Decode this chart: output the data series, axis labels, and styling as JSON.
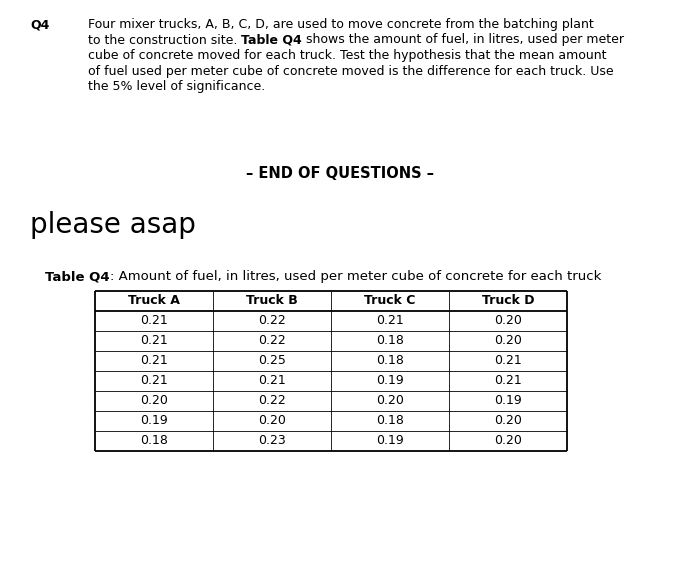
{
  "q4_label": "Q4",
  "q4_lines": [
    [
      "Four mixer trucks, A, B, C, D, are used to move concrete from the batching plant",
      "normal"
    ],
    [
      "to the construction site. ",
      "normal"
    ],
    [
      "Table Q4",
      "bold"
    ],
    [
      " shows the amount of fuel, in litres, used per meter",
      "normal"
    ],
    [
      "cube of concrete moved for each truck. Test the hypothesis that the mean amount",
      "normal"
    ],
    [
      "of fuel used per meter cube of concrete moved is the difference for each truck. Use",
      "normal"
    ],
    [
      "the 5% level of significance.",
      "normal"
    ]
  ],
  "end_of_questions": "– END OF QUESTIONS –",
  "please_asap": "please asap",
  "table_caption_bold": "Table Q4",
  "table_caption_rest": ": Amount of fuel, in litres, used per meter cube of concrete for each truck",
  "col_headers": [
    "Truck A",
    "Truck B",
    "Truck C",
    "Truck D"
  ],
  "table_data": [
    [
      "0.21",
      "0.22",
      "0.21",
      "0.20"
    ],
    [
      "0.21",
      "0.22",
      "0.18",
      "0.20"
    ],
    [
      "0.21",
      "0.25",
      "0.18",
      "0.21"
    ],
    [
      "0.21",
      "0.21",
      "0.19",
      "0.21"
    ],
    [
      "0.20",
      "0.22",
      "0.20",
      "0.19"
    ],
    [
      "0.19",
      "0.20",
      "0.18",
      "0.20"
    ],
    [
      "0.18",
      "0.23",
      "0.19",
      "0.20"
    ]
  ],
  "bg_color": "#ffffff",
  "text_color": "#000000",
  "font_size_body": 9,
  "font_size_please": 20,
  "font_size_caption": 9,
  "font_size_table": 9
}
